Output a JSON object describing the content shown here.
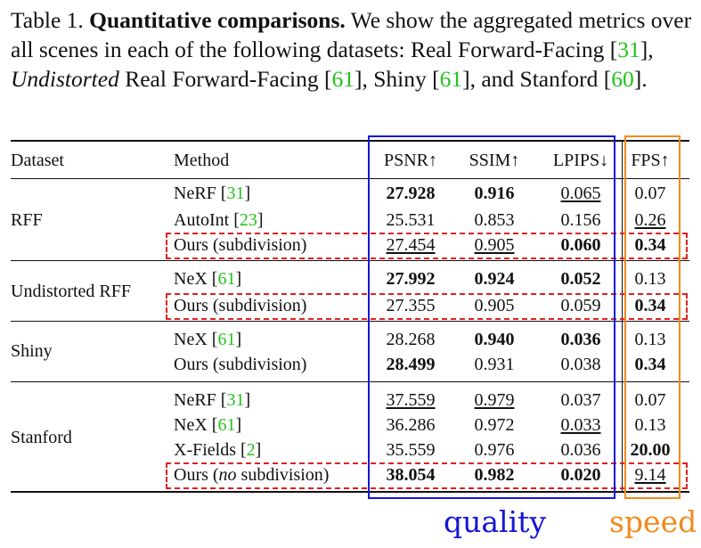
{
  "caption": {
    "table_label": "Table 1.",
    "bold_title": "Quantitative comparisons.",
    "text_1": " We show the aggregated metrics over all scenes in each of the following datasets: Real Forward-Facing [",
    "ref_1": "31",
    "text_2": "], ",
    "italic": "Undistorted",
    "text_3": " Real Forward-Facing [",
    "ref_2": "61",
    "text_4": "], Shiny [",
    "ref_3": "61",
    "text_5": "], and Stanford [",
    "ref_4": "60",
    "text_6": "]."
  },
  "headers": {
    "dataset": "Dataset",
    "method": "Method",
    "psnr": "PSNR↑",
    "ssim": "SSIM↑",
    "lpips": "LPIPS↓",
    "fps": "FPS↑"
  },
  "datasets": {
    "rff": "RFF",
    "undistorted": "Undistorted RFF",
    "shiny": "Shiny",
    "stanford": "Stanford"
  },
  "rows": [
    {
      "method": "NeRF [",
      "ref": "31",
      "method_end": "]",
      "psnr": "27.928",
      "ssim": "0.916",
      "lpips": "0.065",
      "fps": "0.07"
    },
    {
      "method": "AutoInt [",
      "ref": "23",
      "method_end": "]",
      "psnr": "25.531",
      "ssim": "0.853",
      "lpips": "0.156",
      "fps": "0.26"
    },
    {
      "method": "Ours (subdivision)",
      "psnr": "27.454",
      "ssim": "0.905",
      "lpips": "0.060",
      "fps": "0.34"
    },
    {
      "method": "NeX [",
      "ref": "61",
      "method_end": "]",
      "psnr": "27.992",
      "ssim": "0.924",
      "lpips": "0.052",
      "fps": "0.13"
    },
    {
      "method": "Ours (subdivision)",
      "psnr": "27.355",
      "ssim": "0.905",
      "lpips": "0.059",
      "fps": "0.34"
    },
    {
      "method": "NeX [",
      "ref": "61",
      "method_end": "]",
      "psnr": "28.268",
      "ssim": "0.940",
      "lpips": "0.036",
      "fps": "0.13"
    },
    {
      "method": "Ours (subdivision)",
      "psnr": "28.499",
      "ssim": "0.931",
      "lpips": "0.038",
      "fps": "0.34"
    },
    {
      "method": "NeRF [",
      "ref": "31",
      "method_end": "]",
      "psnr": "37.559",
      "ssim": "0.979",
      "lpips": "0.037",
      "fps": "0.07"
    },
    {
      "method": "NeX [",
      "ref": "61",
      "method_end": "]",
      "psnr": "36.286",
      "ssim": "0.972",
      "lpips": "0.033",
      "fps": "0.13"
    },
    {
      "method": "X-Fields [",
      "ref": "2",
      "method_end": "]",
      "psnr": "35.559",
      "ssim": "0.976",
      "lpips": "0.036",
      "fps": "20.00"
    },
    {
      "method": "Ours (",
      "method_italic": "no",
      "method_end": " subdivision)",
      "psnr": "38.054",
      "ssim": "0.982",
      "lpips": "0.020",
      "fps": "9.14"
    }
  ],
  "annotations": {
    "quality": "quality",
    "speed": "speed"
  },
  "colors": {
    "ref_green": "#22c21a",
    "quality_blue": "#1515d6",
    "speed_orange": "#f08a1c",
    "highlight_red": "#e02020"
  }
}
